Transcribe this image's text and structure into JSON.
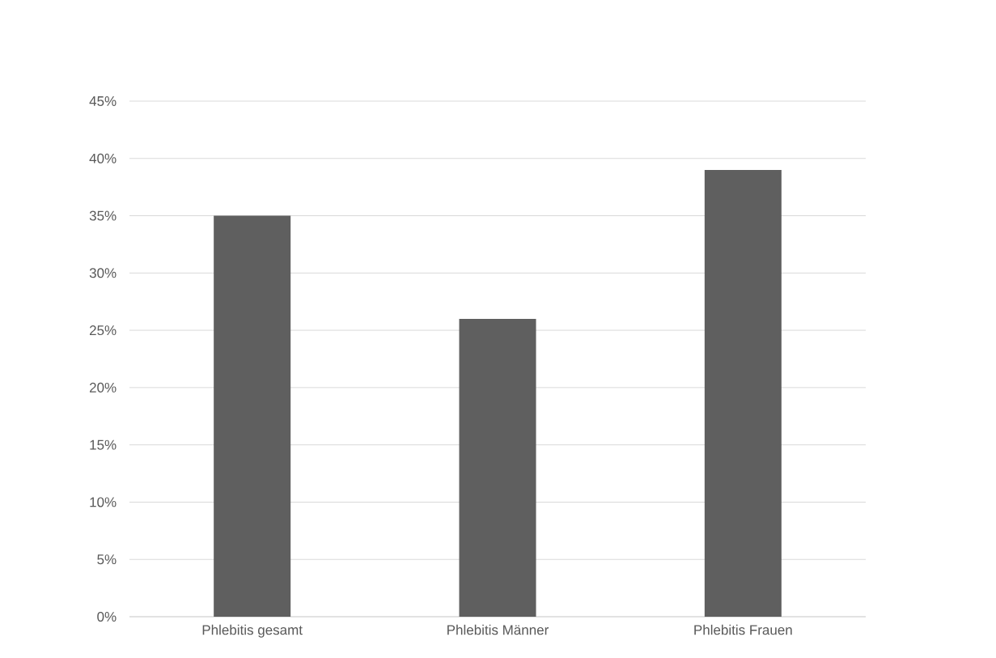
{
  "chart_data": {
    "type": "bar",
    "categories": [
      "Phlebitis gesamt",
      "Phlebitis Männer",
      "Phlebitis Frauen"
    ],
    "values": [
      35,
      26,
      39
    ],
    "color": "#5f5f5f",
    "ylim": [
      0,
      45
    ],
    "yticks": [
      {
        "value": 0,
        "label": "0%"
      },
      {
        "value": 5,
        "label": "5%"
      },
      {
        "value": 10,
        "label": "10%"
      },
      {
        "value": 15,
        "label": "15%"
      },
      {
        "value": 20,
        "label": "20%"
      },
      {
        "value": 25,
        "label": "25%"
      },
      {
        "value": 30,
        "label": "30%"
      },
      {
        "value": 35,
        "label": "35%"
      },
      {
        "value": 40,
        "label": "40%"
      },
      {
        "value": 45,
        "label": "45%"
      }
    ],
    "grid": "y"
  }
}
